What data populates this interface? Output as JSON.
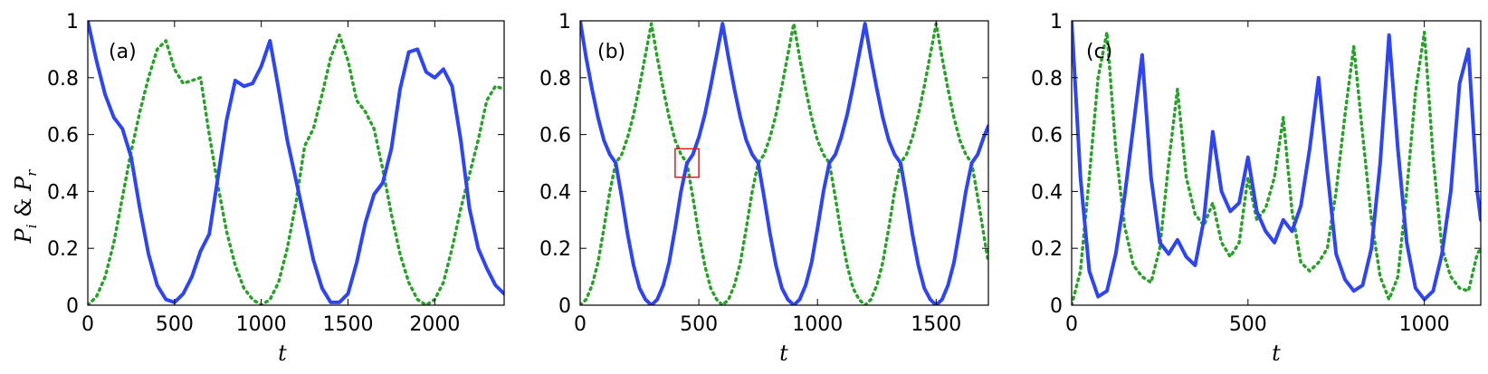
{
  "figure": {
    "ylabel": "P_i & P_r",
    "ylabel_text": {
      "P1": "P",
      "s1": "i",
      "amp": " & ",
      "P2": "P",
      "s2": "r"
    }
  },
  "colors": {
    "solid": "#2f45f0",
    "dotted": "#2ca02c",
    "box": "#e0191e"
  },
  "chart_data": [
    {
      "type": "line",
      "panel_label": "(a)",
      "xlabel": "t",
      "ylabel": "P_i & P_r",
      "xlim": [
        0,
        2400
      ],
      "ylim": [
        0,
        1
      ],
      "xticks": [
        0,
        500,
        1000,
        1500,
        2000
      ],
      "yticks": [
        0,
        0.2,
        0.4,
        0.6,
        0.8,
        1
      ],
      "grid": false,
      "series": [
        {
          "style": "solid",
          "x": [
            0,
            50,
            100,
            150,
            200,
            250,
            300,
            350,
            400,
            450,
            500,
            550,
            600,
            650,
            700,
            750,
            800,
            850,
            900,
            950,
            1000,
            1050,
            1100,
            1150,
            1200,
            1250,
            1300,
            1350,
            1400,
            1450,
            1500,
            1550,
            1600,
            1650,
            1700,
            1750,
            1800,
            1850,
            1900,
            1950,
            2000,
            2050,
            2100,
            2150,
            2200,
            2250,
            2300,
            2350,
            2400
          ],
          "y": [
            1.0,
            0.86,
            0.74,
            0.66,
            0.62,
            0.52,
            0.34,
            0.18,
            0.07,
            0.02,
            0.01,
            0.04,
            0.1,
            0.19,
            0.25,
            0.45,
            0.65,
            0.79,
            0.77,
            0.78,
            0.84,
            0.93,
            0.76,
            0.58,
            0.44,
            0.3,
            0.16,
            0.06,
            0.01,
            0.01,
            0.04,
            0.15,
            0.29,
            0.39,
            0.43,
            0.55,
            0.76,
            0.89,
            0.9,
            0.82,
            0.8,
            0.83,
            0.77,
            0.58,
            0.34,
            0.2,
            0.13,
            0.07,
            0.04
          ]
        },
        {
          "style": "dotted",
          "x": [
            0,
            50,
            100,
            150,
            200,
            250,
            300,
            350,
            400,
            450,
            500,
            550,
            600,
            650,
            700,
            750,
            800,
            850,
            900,
            950,
            1000,
            1050,
            1100,
            1150,
            1200,
            1250,
            1300,
            1350,
            1400,
            1450,
            1500,
            1550,
            1600,
            1650,
            1700,
            1750,
            1800,
            1850,
            1900,
            1950,
            2000,
            2050,
            2100,
            2150,
            2200,
            2250,
            2300,
            2350,
            2400
          ],
          "y": [
            0.0,
            0.03,
            0.1,
            0.22,
            0.38,
            0.54,
            0.68,
            0.8,
            0.9,
            0.93,
            0.83,
            0.78,
            0.79,
            0.8,
            0.6,
            0.42,
            0.26,
            0.14,
            0.06,
            0.02,
            0.0,
            0.02,
            0.08,
            0.2,
            0.36,
            0.56,
            0.62,
            0.74,
            0.87,
            0.95,
            0.86,
            0.72,
            0.68,
            0.62,
            0.48,
            0.32,
            0.18,
            0.08,
            0.02,
            0.0,
            0.02,
            0.08,
            0.2,
            0.34,
            0.46,
            0.58,
            0.72,
            0.77,
            0.76
          ]
        }
      ]
    },
    {
      "type": "line",
      "panel_label": "(b)",
      "xlabel": "t",
      "xlim": [
        0,
        1720
      ],
      "ylim": [
        0,
        1
      ],
      "xticks": [
        0,
        500,
        1000,
        1500
      ],
      "yticks": [
        0,
        0.2,
        0.4,
        0.6,
        0.8,
        1
      ],
      "grid": false,
      "inset_box": {
        "x": [
          400,
          500
        ],
        "y": [
          0.45,
          0.55
        ]
      },
      "series": [
        {
          "style": "solid",
          "x": [
            0,
            25,
            50,
            75,
            100,
            125,
            150,
            175,
            200,
            225,
            250,
            275,
            300,
            325,
            350,
            375,
            400,
            425,
            450,
            475,
            500,
            525,
            550,
            575,
            600,
            625,
            650,
            675,
            700,
            725,
            750,
            775,
            800,
            825,
            850,
            875,
            900,
            925,
            950,
            975,
            1000,
            1025,
            1050,
            1075,
            1100,
            1125,
            1150,
            1175,
            1200,
            1225,
            1250,
            1275,
            1300,
            1325,
            1350,
            1375,
            1400,
            1425,
            1450,
            1475,
            1500,
            1525,
            1550,
            1575,
            1600,
            1625,
            1650,
            1675,
            1700,
            1720
          ],
          "y": [
            1.0,
            0.87,
            0.76,
            0.66,
            0.58,
            0.53,
            0.5,
            0.38,
            0.25,
            0.14,
            0.06,
            0.02,
            0.0,
            0.02,
            0.07,
            0.15,
            0.27,
            0.4,
            0.5,
            0.53,
            0.59,
            0.67,
            0.77,
            0.88,
            0.99,
            0.87,
            0.76,
            0.66,
            0.58,
            0.53,
            0.5,
            0.38,
            0.25,
            0.14,
            0.06,
            0.02,
            0.0,
            0.02,
            0.07,
            0.15,
            0.27,
            0.4,
            0.5,
            0.53,
            0.59,
            0.67,
            0.77,
            0.88,
            0.99,
            0.87,
            0.76,
            0.66,
            0.58,
            0.53,
            0.5,
            0.38,
            0.25,
            0.14,
            0.06,
            0.02,
            0.0,
            0.02,
            0.07,
            0.15,
            0.27,
            0.4,
            0.5,
            0.53,
            0.59,
            0.63
          ]
        },
        {
          "style": "dotted",
          "x": [
            0,
            25,
            50,
            75,
            100,
            125,
            150,
            175,
            200,
            225,
            250,
            275,
            300,
            325,
            350,
            375,
            400,
            425,
            450,
            475,
            500,
            525,
            550,
            575,
            600,
            625,
            650,
            675,
            700,
            725,
            750,
            775,
            800,
            825,
            850,
            875,
            900,
            925,
            950,
            975,
            1000,
            1025,
            1050,
            1075,
            1100,
            1125,
            1150,
            1175,
            1200,
            1225,
            1250,
            1275,
            1300,
            1325,
            1350,
            1375,
            1400,
            1425,
            1450,
            1475,
            1500,
            1525,
            1550,
            1575,
            1600,
            1625,
            1650,
            1675,
            1700,
            1720
          ],
          "y": [
            0.0,
            0.02,
            0.07,
            0.15,
            0.27,
            0.4,
            0.5,
            0.53,
            0.59,
            0.67,
            0.77,
            0.88,
            0.99,
            0.87,
            0.76,
            0.66,
            0.58,
            0.53,
            0.5,
            0.38,
            0.25,
            0.14,
            0.06,
            0.02,
            0.0,
            0.02,
            0.07,
            0.15,
            0.27,
            0.4,
            0.5,
            0.53,
            0.59,
            0.67,
            0.77,
            0.88,
            0.99,
            0.87,
            0.76,
            0.66,
            0.58,
            0.53,
            0.5,
            0.38,
            0.25,
            0.14,
            0.06,
            0.02,
            0.0,
            0.02,
            0.07,
            0.15,
            0.27,
            0.4,
            0.5,
            0.53,
            0.59,
            0.67,
            0.77,
            0.88,
            0.99,
            0.87,
            0.76,
            0.66,
            0.58,
            0.53,
            0.5,
            0.38,
            0.25,
            0.15
          ]
        }
      ]
    },
    {
      "type": "line",
      "panel_label": "(c)",
      "xlabel": "t",
      "xlim": [
        0,
        1160
      ],
      "ylim": [
        0,
        1
      ],
      "xticks": [
        0,
        500,
        1000
      ],
      "yticks": [
        0,
        0.2,
        0.4,
        0.6,
        0.8,
        1
      ],
      "grid": false,
      "series": [
        {
          "style": "solid",
          "x": [
            0,
            25,
            50,
            75,
            100,
            125,
            150,
            175,
            200,
            225,
            250,
            275,
            300,
            325,
            350,
            375,
            400,
            425,
            450,
            475,
            500,
            525,
            550,
            575,
            600,
            625,
            650,
            675,
            700,
            725,
            750,
            775,
            800,
            825,
            850,
            875,
            900,
            925,
            950,
            975,
            1000,
            1025,
            1050,
            1075,
            1100,
            1125,
            1150,
            1160
          ],
          "y": [
            1.0,
            0.45,
            0.12,
            0.03,
            0.05,
            0.18,
            0.38,
            0.63,
            0.88,
            0.45,
            0.22,
            0.18,
            0.23,
            0.17,
            0.14,
            0.3,
            0.61,
            0.4,
            0.33,
            0.36,
            0.52,
            0.33,
            0.26,
            0.22,
            0.3,
            0.26,
            0.35,
            0.55,
            0.8,
            0.47,
            0.18,
            0.09,
            0.05,
            0.07,
            0.2,
            0.5,
            0.95,
            0.55,
            0.22,
            0.06,
            0.02,
            0.05,
            0.18,
            0.4,
            0.78,
            0.9,
            0.4,
            0.3
          ]
        },
        {
          "style": "dotted",
          "x": [
            0,
            25,
            50,
            75,
            100,
            125,
            150,
            175,
            200,
            225,
            250,
            275,
            300,
            325,
            350,
            375,
            400,
            425,
            450,
            475,
            500,
            525,
            550,
            575,
            600,
            625,
            650,
            675,
            700,
            725,
            750,
            775,
            800,
            825,
            850,
            875,
            900,
            925,
            950,
            975,
            1000,
            1025,
            1050,
            1075,
            1100,
            1125,
            1150,
            1160
          ],
          "y": [
            0.0,
            0.12,
            0.45,
            0.8,
            0.96,
            0.55,
            0.28,
            0.14,
            0.1,
            0.08,
            0.2,
            0.5,
            0.76,
            0.45,
            0.32,
            0.28,
            0.36,
            0.22,
            0.17,
            0.22,
            0.45,
            0.3,
            0.34,
            0.45,
            0.66,
            0.33,
            0.15,
            0.12,
            0.15,
            0.2,
            0.4,
            0.67,
            0.91,
            0.6,
            0.3,
            0.1,
            0.02,
            0.1,
            0.4,
            0.75,
            0.96,
            0.52,
            0.2,
            0.1,
            0.06,
            0.05,
            0.18,
            0.2
          ]
        }
      ]
    }
  ]
}
